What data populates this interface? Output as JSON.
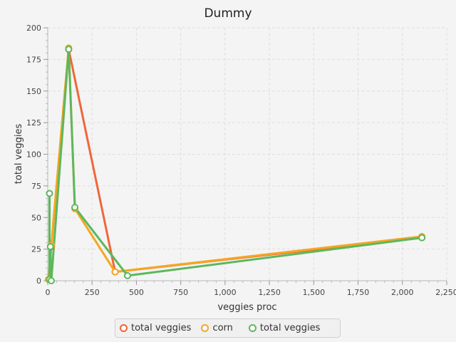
{
  "chart_data": {
    "type": "line",
    "title": "Dummy",
    "xlabel": "veggies proc",
    "ylabel": "total veggies",
    "xlim": [
      0,
      2250
    ],
    "ylim": [
      0,
      200
    ],
    "xticks": [
      {
        "value": 0,
        "label": "0"
      },
      {
        "value": 250,
        "label": "250"
      },
      {
        "value": 500,
        "label": "500"
      },
      {
        "value": 750,
        "label": "750"
      },
      {
        "value": 1000,
        "label": "1,000"
      },
      {
        "value": 1250,
        "label": "1,250"
      },
      {
        "value": 1500,
        "label": "1,500"
      },
      {
        "value": 1750,
        "label": "1,750"
      },
      {
        "value": 2000,
        "label": "2,000"
      },
      {
        "value": 2250,
        "label": "2,250"
      }
    ],
    "yticks": [
      {
        "value": 0,
        "label": "0"
      },
      {
        "value": 25,
        "label": "25"
      },
      {
        "value": 50,
        "label": "50"
      },
      {
        "value": 75,
        "label": "75"
      },
      {
        "value": 100,
        "label": "100"
      },
      {
        "value": 125,
        "label": "125"
      },
      {
        "value": 150,
        "label": "150"
      },
      {
        "value": 175,
        "label": "175"
      },
      {
        "value": 200,
        "label": "200"
      }
    ],
    "grid": true,
    "legend_position": "bottom",
    "series": [
      {
        "name": "total veggies",
        "color": "#f0663a",
        "points": [
          [
            5,
            1
          ],
          [
            20,
            27
          ],
          [
            118,
            183
          ],
          [
            380,
            7
          ],
          [
            2110,
            34
          ]
        ]
      },
      {
        "name": "corn",
        "color": "#f5a623",
        "points": [
          [
            5,
            1
          ],
          [
            20,
            28
          ],
          [
            118,
            184
          ],
          [
            153,
            57
          ],
          [
            380,
            7
          ],
          [
            2110,
            35
          ]
        ]
      },
      {
        "name": "total veggies",
        "color": "#5cb85c",
        "points": [
          [
            10,
            69
          ],
          [
            10,
            1
          ],
          [
            15,
            27
          ],
          [
            20,
            0
          ],
          [
            118,
            183
          ],
          [
            153,
            58
          ],
          [
            450,
            4
          ],
          [
            2110,
            34
          ]
        ]
      }
    ]
  }
}
